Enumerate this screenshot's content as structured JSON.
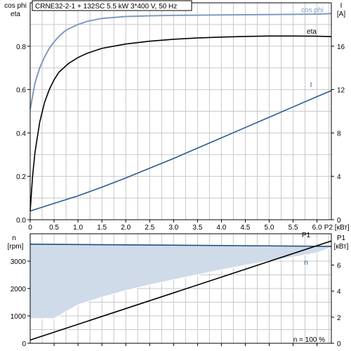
{
  "header": {
    "label": "CRNE32-2-1 + 132SC   5.5 kW   3*400 V, 50 Hz"
  },
  "colors": {
    "cosphi": "#7d9bbe",
    "eta": "#000000",
    "current": "#2d5a8e",
    "speed_line": "#1f4f7f",
    "speed_fill": "#cfdbe8",
    "p1": "#000000"
  },
  "chart_data": [
    {
      "type": "line",
      "xlabel": "P2 [кВт]",
      "xlim": [
        0,
        6.3
      ],
      "x_ticks": [
        "0",
        "0.5",
        "1.0",
        "1.5",
        "2.0",
        "2.5",
        "3.0",
        "3.5",
        "4.0",
        "4.5",
        "5.0",
        "5.5",
        "6.0"
      ],
      "ylabel_left_top": "cos phi",
      "ylabel_left_bottom": "eta",
      "ylim_left": [
        0,
        1
      ],
      "y_ticks_left": [
        "0.0",
        "0.2",
        "0.4",
        "0.6",
        "0.8"
      ],
      "ylabel_right_top": "I",
      "ylabel_right_bottom": "[A]",
      "ylim_right": [
        0,
        20
      ],
      "y_ticks_right": [
        "0",
        "4",
        "8",
        "12",
        "16"
      ],
      "grid": true,
      "series": [
        {
          "name": "cos phi",
          "axis": "left",
          "x": [
            0,
            0.1,
            0.2,
            0.3,
            0.4,
            0.5,
            0.6,
            0.7,
            0.8,
            1.0,
            1.2,
            1.5,
            2.0,
            2.5,
            3.0,
            4.0,
            5.0,
            6.0,
            6.3
          ],
          "values": [
            0.51,
            0.63,
            0.7,
            0.75,
            0.79,
            0.82,
            0.845,
            0.865,
            0.88,
            0.9,
            0.915,
            0.928,
            0.937,
            0.94,
            0.942,
            0.944,
            0.946,
            0.948,
            0.95
          ]
        },
        {
          "name": "eta",
          "axis": "left",
          "x": [
            0,
            0.05,
            0.1,
            0.2,
            0.3,
            0.4,
            0.5,
            0.6,
            0.8,
            1.0,
            1.2,
            1.5,
            2.0,
            2.5,
            3.0,
            3.5,
            4.0,
            4.5,
            5.0,
            5.5,
            6.0,
            6.3
          ],
          "values": [
            0.04,
            0.2,
            0.31,
            0.45,
            0.54,
            0.6,
            0.645,
            0.68,
            0.72,
            0.748,
            0.768,
            0.79,
            0.81,
            0.823,
            0.832,
            0.838,
            0.842,
            0.845,
            0.847,
            0.847,
            0.846,
            0.844
          ]
        },
        {
          "name": "I",
          "axis": "right",
          "x": [
            0,
            0.5,
            1.0,
            1.5,
            2.0,
            2.5,
            3.0,
            3.5,
            4.0,
            4.5,
            5.0,
            5.5,
            6.0,
            6.3
          ],
          "values": [
            0.8,
            1.5,
            2.2,
            3.0,
            3.85,
            4.75,
            5.65,
            6.6,
            7.55,
            8.5,
            9.45,
            10.4,
            11.35,
            11.9
          ]
        }
      ]
    },
    {
      "type": "area",
      "xlim": [
        0,
        6.3
      ],
      "ylabel_left_top": "n",
      "ylabel_left_bottom": "[rpm]",
      "ylim_left": [
        0,
        4000
      ],
      "y_ticks_left": [
        "0",
        "1000",
        "2000",
        "3000"
      ],
      "ylabel_right_top": "P1",
      "ylabel_right_bottom": "[кВт]",
      "ylim_right": [
        0,
        8.4
      ],
      "y_ticks_right": [
        "0",
        "2",
        "4",
        "6"
      ],
      "annotation": "n = 100 %",
      "grid": true,
      "series": [
        {
          "name": "n",
          "axis": "left",
          "role": "lower boundary of shaded range",
          "x": [
            0,
            0.5,
            1.0,
            1.5,
            2.0,
            2.5,
            3.0,
            3.5,
            4.0,
            4.5,
            5.0,
            5.5,
            6.0,
            6.3
          ],
          "values": [
            900,
            900,
            1400,
            1680,
            1920,
            2130,
            2320,
            2500,
            2680,
            2850,
            3000,
            3140,
            3300,
            3500
          ]
        },
        {
          "name": "",
          "axis": "left",
          "role": "upper boundary of shaded range",
          "x": [
            0,
            6.3
          ],
          "values": [
            3620,
            3540
          ]
        },
        {
          "name": "P1",
          "axis": "right",
          "x": [
            0,
            6.3
          ],
          "values": [
            0.25,
            7.85
          ]
        }
      ]
    }
  ]
}
